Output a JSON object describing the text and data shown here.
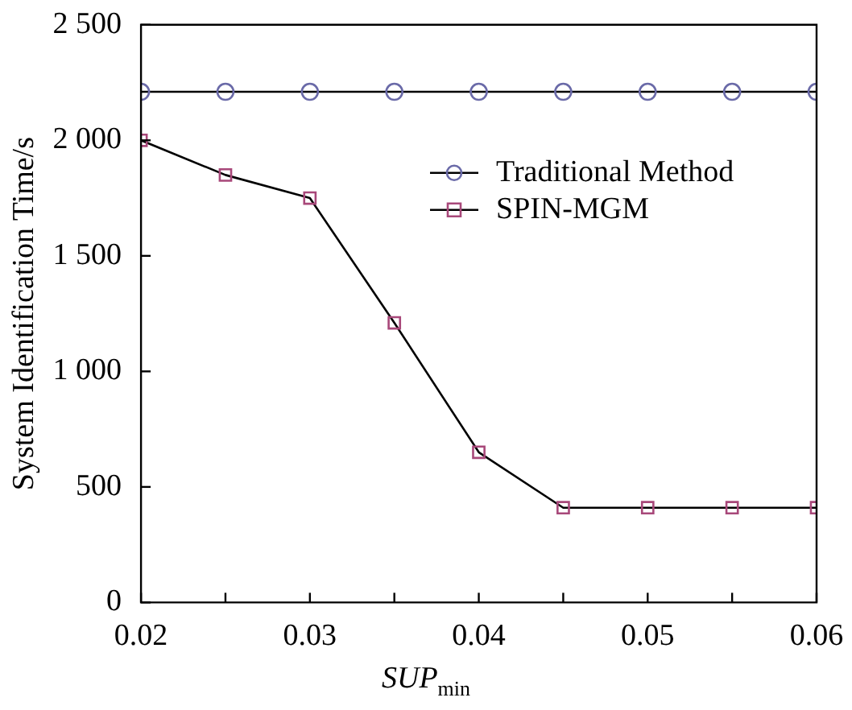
{
  "chart_data": {
    "type": "line",
    "xlabel": "SUP$_{min}$",
    "ylabel": "System Identification Time/s",
    "x": [
      0.02,
      0.025,
      0.03,
      0.035,
      0.04,
      0.045,
      0.05,
      0.055,
      0.06
    ],
    "series": [
      {
        "name": "Traditional Method",
        "color": "#6a6aa8",
        "marker": "circle",
        "values": [
          2210,
          2210,
          2210,
          2210,
          2210,
          2210,
          2210,
          2210,
          2210
        ]
      },
      {
        "name": "SPIN-MGM",
        "color": "#a8487a",
        "marker": "square",
        "values": [
          2000,
          1850,
          1750,
          1210,
          650,
          410,
          410,
          410,
          410
        ]
      }
    ],
    "xlim": [
      0.02,
      0.06
    ],
    "xticks": [
      0.02,
      {
        "value": 0.025,
        "label": null
      },
      0.03,
      {
        "value": 0.035,
        "label": null
      },
      0.04,
      {
        "value": 0.045,
        "label": null
      },
      0.05,
      {
        "value": 0.055,
        "label": null
      },
      0.06
    ],
    "ylim": [
      0,
      2500
    ],
    "yticks": [
      {
        "value": 0,
        "label": "0"
      },
      {
        "value": 500,
        "label": "500"
      },
      {
        "value": 1000,
        "label": "1 000"
      },
      {
        "value": 1500,
        "label": "1 500"
      },
      {
        "value": 2000,
        "label": "2 000"
      },
      {
        "value": 2500,
        "label": "2 500"
      }
    ],
    "grid": false,
    "legend": "top right",
    "line_style": "solid"
  }
}
